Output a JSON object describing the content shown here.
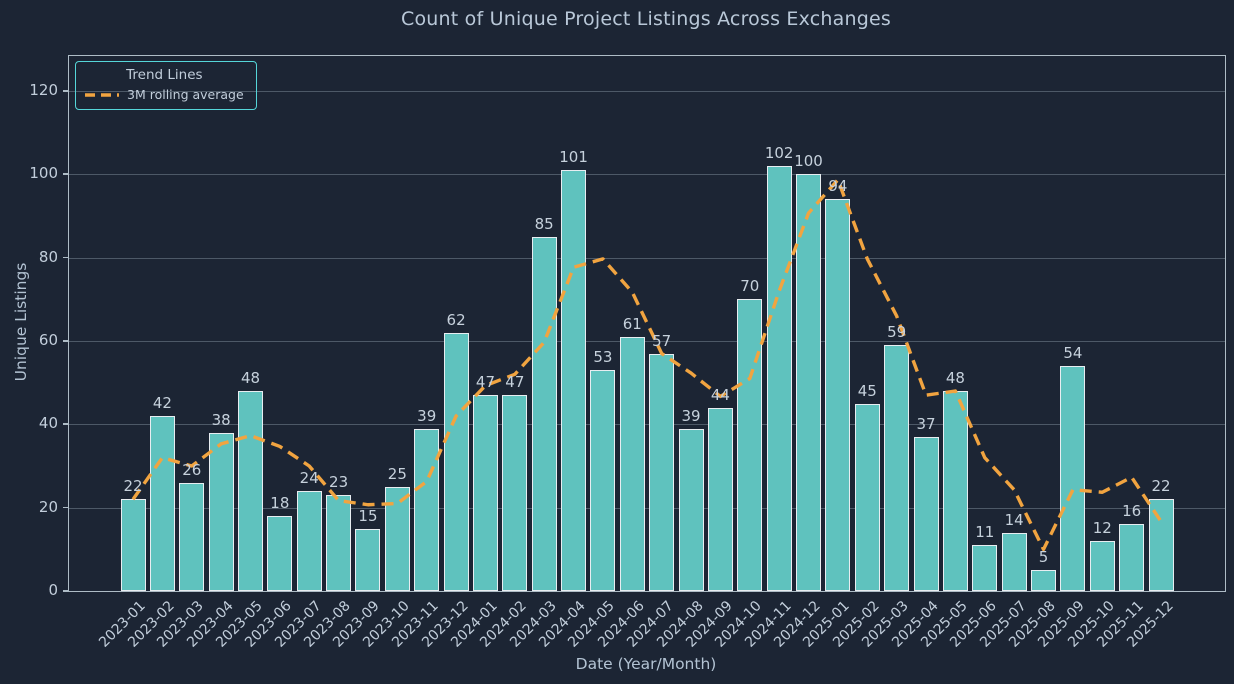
{
  "chart_data": {
    "type": "bar",
    "title": "Count of Unique Project Listings Across Exchanges",
    "xlabel": "Date (Year/Month)",
    "ylabel": "Unique Listings",
    "categories": [
      "2023-01",
      "2023-02",
      "2023-03",
      "2023-04",
      "2023-05",
      "2023-06",
      "2023-07",
      "2023-08",
      "2023-09",
      "2023-10",
      "2023-11",
      "2023-12",
      "2024-01",
      "2024-02",
      "2024-03",
      "2024-04",
      "2024-05",
      "2024-06",
      "2024-07",
      "2024-08",
      "2024-09",
      "2024-10",
      "2024-11",
      "2024-12",
      "2025-01",
      "2025-02",
      "2025-03",
      "2025-04",
      "2025-05",
      "2025-06",
      "2025-07",
      "2025-08",
      "2025-09",
      "2025-10",
      "2025-11",
      "2025-12"
    ],
    "series": [
      {
        "name": "Unique Listings",
        "type": "bar",
        "values": [
          22,
          42,
          26,
          38,
          48,
          18,
          24,
          23,
          15,
          25,
          39,
          62,
          47,
          47,
          85,
          101,
          53,
          61,
          57,
          39,
          44,
          70,
          102,
          100,
          94,
          45,
          59,
          37,
          48,
          11,
          14,
          5,
          54,
          12,
          16,
          22
        ]
      },
      {
        "name": "3M rolling average",
        "type": "line",
        "style": "dashed",
        "values": [
          22,
          32,
          30,
          35.3,
          37.3,
          34.7,
          30,
          21.7,
          20.7,
          21,
          26.3,
          42,
          49.3,
          52,
          59.7,
          77.7,
          79.7,
          71.7,
          57,
          52.3,
          46.7,
          51,
          72,
          90.7,
          98.7,
          79.7,
          66,
          47,
          48,
          32,
          24.3,
          10,
          24.3,
          23.7,
          27.3,
          16.7
        ]
      }
    ],
    "bar_value_labels": true,
    "yticks": [
      0,
      20,
      40,
      60,
      80,
      100,
      120
    ],
    "ylim": [
      0,
      128.4
    ],
    "grid": "horizontal",
    "legend": {
      "title": "Trend Lines",
      "position": "upper-left",
      "entries": [
        {
          "label": "3M rolling average",
          "swatch": "dashed-line"
        }
      ]
    },
    "colors": {
      "background": "#1c2534",
      "bar_fill": "#5fc2be",
      "bar_edge": "#e8edf1",
      "trend_line": "#f1a440",
      "grid": "rgba(180,196,210,0.33)",
      "axis_border": "#aebcc6",
      "legend_border": "#55d6d9",
      "text": "#c2cedb"
    }
  }
}
